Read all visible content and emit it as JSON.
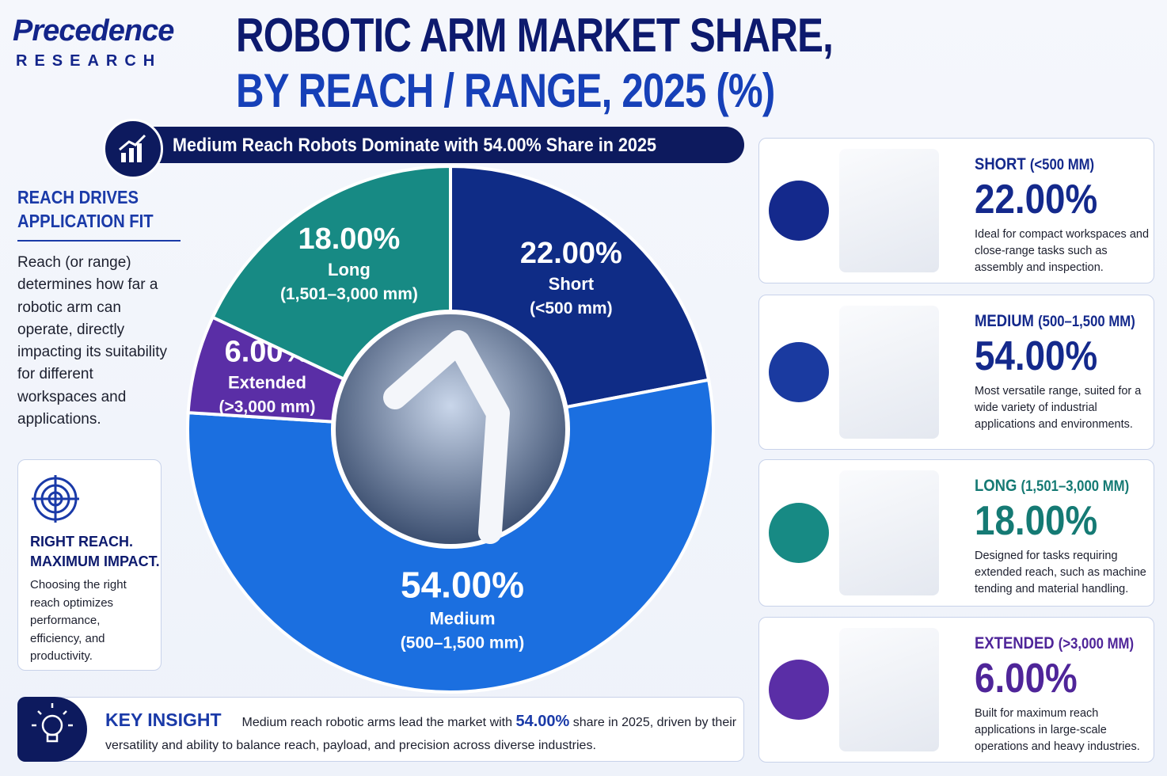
{
  "header": {
    "logo_top": "Precedence",
    "logo_bottom": "RESEARCH",
    "title_line1": "ROBOTIC ARM MARKET SHARE,",
    "title_line2": "BY REACH / RANGE, 2025 (%)"
  },
  "banner": "Medium Reach Robots Dominate with 54.00% Share in 2025",
  "sidebar": {
    "heading": "REACH DRIVES APPLICATION FIT",
    "body": "Reach (or range) determines how far a robotic arm can operate, directly impacting its suitability for different workspaces and applications.",
    "box_heading": "RIGHT REACH. MAXIMUM IMPACT.",
    "box_body": "Choosing the right reach optimizes performance, efficiency, and productivity."
  },
  "chart_data": {
    "type": "pie",
    "categories": [
      "Short",
      "Medium",
      "Extended",
      "Long"
    ],
    "category_ranges": [
      "(<500 mm)",
      "(500–1,500 mm)",
      "(>3,000 mm)",
      "(1,501–3,000 mm)"
    ],
    "values": [
      22,
      54,
      6,
      18
    ],
    "value_labels": [
      "22.00%",
      "54.00%",
      "6.00%",
      "18.00%"
    ],
    "colors": [
      "#0f2c86",
      "#1b6fe0",
      "#5a2ea6",
      "#178a84"
    ]
  },
  "cards": [
    {
      "title": "SHORT",
      "range": "(<500 MM)",
      "value": "22.00%",
      "description": "Ideal for compact workspaces and close-range tasks such as assembly and inspection.",
      "color": "#14298c",
      "icon_color": "#14298c"
    },
    {
      "title": "MEDIUM",
      "range": "(500–1,500 MM)",
      "value": "54.00%",
      "description": "Most versatile range, suited for a wide variety of industrial applications and environments.",
      "color": "#14298c",
      "icon_color": "#1a3aa0"
    },
    {
      "title": "LONG",
      "range": "(1,501–3,000 MM)",
      "value": "18.00%",
      "description": "Designed for tasks requiring extended reach, such as machine tending and material handling.",
      "color": "#157a74",
      "icon_color": "#178a84"
    },
    {
      "title": "EXTENDED",
      "range": "(>3,000 MM)",
      "value": "6.00%",
      "description": "Built for maximum reach applications in large-scale operations and heavy industries.",
      "color": "#4f2599",
      "icon_color": "#5a2ea6"
    }
  ],
  "insight": {
    "heading": "KEY INSIGHT",
    "text_before": "Medium reach robotic arms lead the market with ",
    "highlight": "54.00%",
    "text_after": " share in 2025, driven by their versatility and ability to balance reach, payload, and precision across diverse industries."
  }
}
